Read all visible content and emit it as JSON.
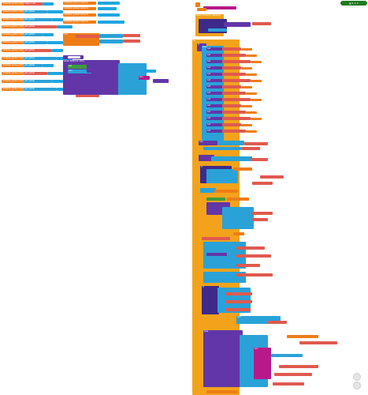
{
  "warnings_badge": "▲ 0  ⚠ 0",
  "left_column": {
    "globals": [
      "initialize global  name  to",
      "initialize global  name  to",
      "initialize global  name  to",
      "initialize global  name  to",
      "initialize global  name  to",
      "initialize global  name  to",
      "initialize global  name  to",
      "initialize global  name  to",
      "initialize global  name  to",
      "initialize global  name  to",
      "initialize global  name  to",
      "initialize global  name  to"
    ],
    "values": [
      "make a list",
      "get global",
      "get global",
      "get global",
      "get global",
      "get global",
      "get global",
      "get global",
      "get global",
      "get global",
      "get global",
      "get global"
    ]
  },
  "middle_column": {
    "globals": [
      "initialize global  name  to",
      "initialize global  name  to",
      "initialize global  name  to",
      "initialize global  name  to"
    ],
    "event_header": "when  Button1 .Click",
    "do_label": "do",
    "set_label": "set",
    "to_label": "to",
    "call_label": "call"
  },
  "right_column": {
    "main_event": "when  Screen1 .Initialize",
    "do_label": "do",
    "if_label": "if",
    "then_label": "then",
    "else_label": "else",
    "set_label": "set",
    "to_label": "to",
    "call_label": "call",
    "text_label": "\" \"",
    "join_label": "join"
  },
  "controls": {
    "zoom_in": "+",
    "zoom_out": "−",
    "center": "◎",
    "trash": "trash-icon"
  }
}
